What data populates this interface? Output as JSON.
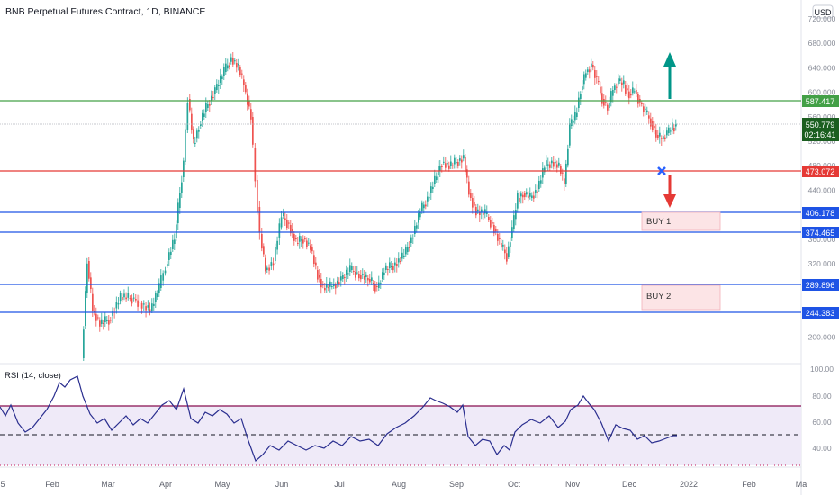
{
  "header": {
    "title": "BNB Perpetual Futures Contract, 1D, BINANCE",
    "currency": "USD"
  },
  "colors": {
    "up": "#26a69a",
    "down": "#ef5350",
    "support": "#2962ff",
    "resistance_green": "#43a047",
    "resistance_red": "#e53935",
    "rsi_line": "#2a2e8f",
    "rsi_band": "#ede7f6",
    "rsi_upper": "#880e4f",
    "rsi_lower": "#b71c1c",
    "arrow_up": "#009688",
    "arrow_down": "#e53935",
    "cross": "#2962ff"
  },
  "price_axis": {
    "ticks": [
      "720.000",
      "680.000",
      "640.000",
      "600.000",
      "560.000",
      "520.000",
      "480.000",
      "440.000",
      "400.000",
      "360.000",
      "320.000",
      "280.000",
      "240.000",
      "200.000"
    ],
    "current_price": "550.779",
    "countdown": "02:16:41"
  },
  "levels": [
    {
      "label": "587.417",
      "value": 587.417,
      "color": "green"
    },
    {
      "label": "473.072",
      "value": 473.072,
      "color": "red"
    },
    {
      "label": "406.178",
      "value": 406.178,
      "color": "blue"
    },
    {
      "label": "374.465",
      "value": 374.465,
      "color": "blue"
    },
    {
      "label": "289.896",
      "value": 289.896,
      "color": "blue"
    },
    {
      "label": "244.383",
      "value": 244.383,
      "color": "blue"
    }
  ],
  "zones": [
    {
      "label": "BUY 1"
    },
    {
      "label": "BUY 2"
    }
  ],
  "rsi": {
    "title": "RSI (14, close)",
    "ticks": [
      "100.00",
      "80.00",
      "60.00",
      "40.00"
    ],
    "upper_band": 73,
    "lower_band": 27,
    "midline": 50
  },
  "time_axis": {
    "ticks": [
      "5",
      "Feb",
      "Mar",
      "Apr",
      "May",
      "Jun",
      "Jul",
      "Aug",
      "Sep",
      "Oct",
      "Nov",
      "Dec",
      "2022",
      "Feb",
      "Ma"
    ]
  },
  "chart_data": {
    "type": "candlestick",
    "title": "BNB Perpetual Futures Contract, 1D, BINANCE",
    "y_unit": "USD",
    "price_path_approx": [
      [
        "late Jan",
        40
      ],
      [
        "mid Feb",
        250
      ],
      [
        "end Feb",
        220
      ],
      [
        "Mar",
        260
      ],
      [
        "late Mar",
        260
      ],
      [
        "early Apr",
        320
      ],
      [
        "mid Apr",
        580
      ],
      [
        "late Apr",
        560
      ],
      [
        "early May",
        620
      ],
      [
        "mid May",
        680
      ],
      [
        "late May",
        420
      ],
      [
        "early Jun",
        300
      ],
      [
        "mid Jun",
        400
      ],
      [
        "end Jun",
        290
      ],
      [
        "Jul",
        300
      ],
      [
        "late Jul",
        300
      ],
      [
        "early Aug",
        330
      ],
      [
        "mid Aug",
        420
      ],
      [
        "late Aug",
        490
      ],
      [
        "early Sep",
        470
      ],
      [
        "mid Sep",
        400
      ],
      [
        "late Sep",
        360
      ],
      [
        "early Oct",
        400
      ],
      [
        "mid Oct",
        480
      ],
      [
        "late Oct",
        530
      ],
      [
        "early Nov",
        640
      ],
      [
        "mid Nov",
        600
      ],
      [
        "late Nov",
        640
      ],
      [
        "early Dec",
        560
      ],
      [
        "mid Dec",
        530
      ],
      [
        "latest",
        550
      ]
    ],
    "rsi_series_approx": [
      [
        "late Jan",
        60
      ],
      [
        "mid Feb",
        90
      ],
      [
        "late Feb",
        55
      ],
      [
        "Mar",
        60
      ],
      [
        "Apr",
        70
      ],
      [
        "late Apr",
        80
      ],
      [
        "May",
        75
      ],
      [
        "early Jun",
        30
      ],
      [
        "Jul",
        40
      ],
      [
        "late Jul",
        48
      ],
      [
        "Aug",
        70
      ],
      [
        "late Aug",
        80
      ],
      [
        "Sep",
        45
      ],
      [
        "late Sep",
        35
      ],
      [
        "Oct",
        55
      ],
      [
        "Nov",
        80
      ],
      [
        "mid Nov",
        55
      ],
      [
        "Dec",
        45
      ],
      [
        "latest",
        50
      ]
    ]
  }
}
